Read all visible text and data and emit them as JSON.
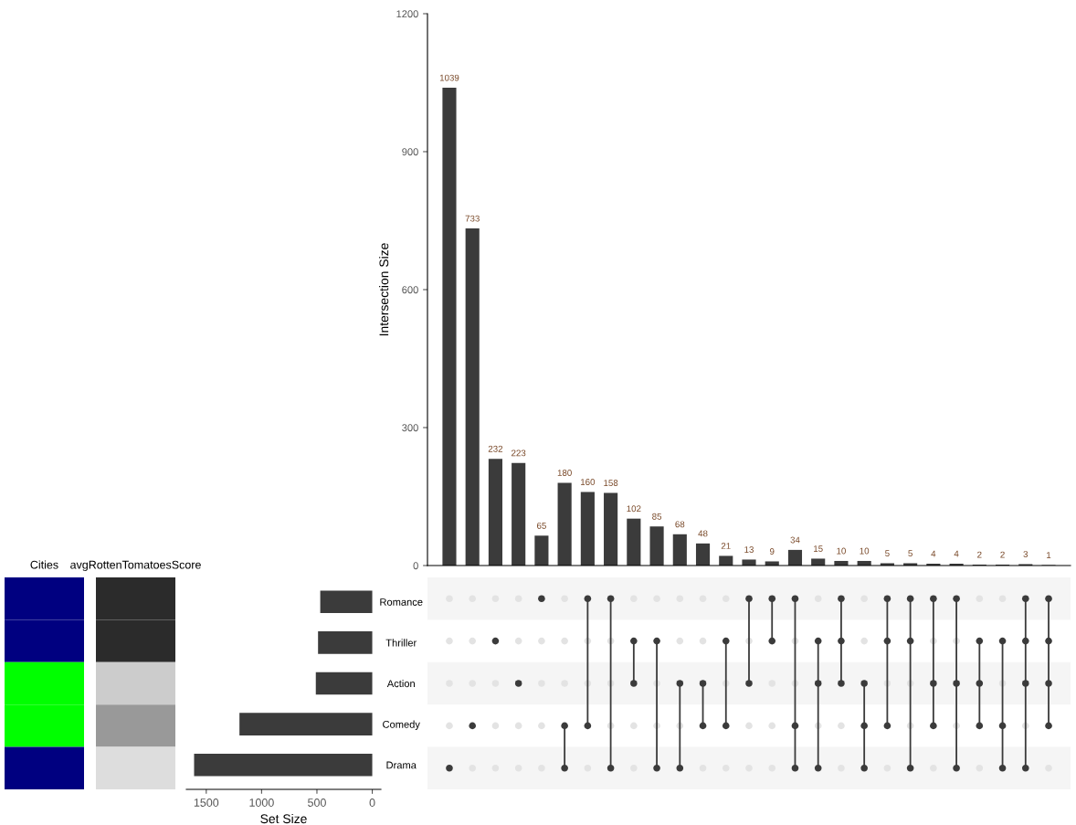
{
  "chart_data": [
    {
      "type": "bar",
      "ylabel": "Intersection Size",
      "categories": [
        null,
        null,
        null,
        null,
        null,
        null,
        null,
        null,
        null,
        null,
        null,
        null,
        null,
        null,
        null,
        null,
        null,
        null,
        null,
        null,
        null,
        null,
        null,
        null,
        null,
        null,
        null
      ],
      "values": [
        1039,
        733,
        232,
        223,
        65,
        180,
        160,
        158,
        102,
        85,
        68,
        48,
        21,
        13,
        9,
        34,
        15,
        10,
        10,
        5,
        5,
        4,
        4,
        2,
        2,
        3,
        1
      ],
      "color": "#3b3b3b",
      "ylim": [
        0,
        1200
      ],
      "yticks": [
        0,
        300,
        600,
        900,
        1200
      ],
      "data_labels": true
    },
    {
      "type": "other",
      "categories": [
        "Cities",
        "avgRottenTomatoesScore"
      ],
      "colors": [
        [
          "#000080",
          "#2b2b2b"
        ],
        [
          "#000080",
          "#2b2b2b"
        ],
        [
          "#00ff00",
          "#cccccc"
        ],
        [
          "#00ff00",
          "#999999"
        ],
        [
          "#000080",
          "#dddddd"
        ]
      ]
    },
    {
      "type": "bar",
      "orientation": "horizontal",
      "xlabel": "Set Size",
      "categories": [
        "Romance",
        "Thriller",
        "Action",
        "Comedy",
        "Drama"
      ],
      "values": [
        470,
        490,
        510,
        1200,
        1610
      ],
      "color": "#3b3b3b",
      "xlim": [
        1680,
        -78
      ],
      "xticks": [
        1500,
        1000,
        500,
        0
      ]
    },
    {
      "type": "other",
      "categories": [
        null,
        null,
        null,
        null,
        null,
        null,
        null,
        null,
        null,
        null,
        null,
        null,
        null,
        null,
        null,
        null,
        null,
        null,
        null,
        null,
        null,
        null,
        null,
        null,
        null,
        null,
        null
      ],
      "cells": [
        [
          false,
          false,
          false,
          false,
          true,
          false,
          true,
          true,
          false,
          false,
          false,
          false,
          false,
          true,
          true,
          true,
          false,
          true,
          false,
          true,
          true,
          true,
          true,
          false,
          false,
          true,
          true
        ],
        [
          false,
          false,
          true,
          false,
          false,
          false,
          false,
          false,
          true,
          true,
          false,
          false,
          true,
          false,
          true,
          false,
          true,
          true,
          false,
          true,
          true,
          false,
          false,
          true,
          true,
          true,
          true
        ],
        [
          false,
          false,
          false,
          true,
          false,
          false,
          false,
          false,
          true,
          false,
          true,
          true,
          false,
          true,
          false,
          false,
          true,
          true,
          true,
          false,
          false,
          true,
          true,
          true,
          false,
          true,
          true
        ],
        [
          false,
          true,
          false,
          false,
          false,
          true,
          true,
          false,
          false,
          false,
          false,
          true,
          true,
          false,
          false,
          true,
          false,
          false,
          true,
          true,
          false,
          true,
          false,
          true,
          true,
          false,
          true
        ],
        [
          true,
          false,
          false,
          false,
          false,
          true,
          false,
          true,
          false,
          true,
          true,
          false,
          false,
          false,
          false,
          true,
          true,
          false,
          true,
          false,
          true,
          false,
          true,
          false,
          true,
          true,
          false
        ]
      ],
      "color": "#3b3b3b"
    }
  ]
}
